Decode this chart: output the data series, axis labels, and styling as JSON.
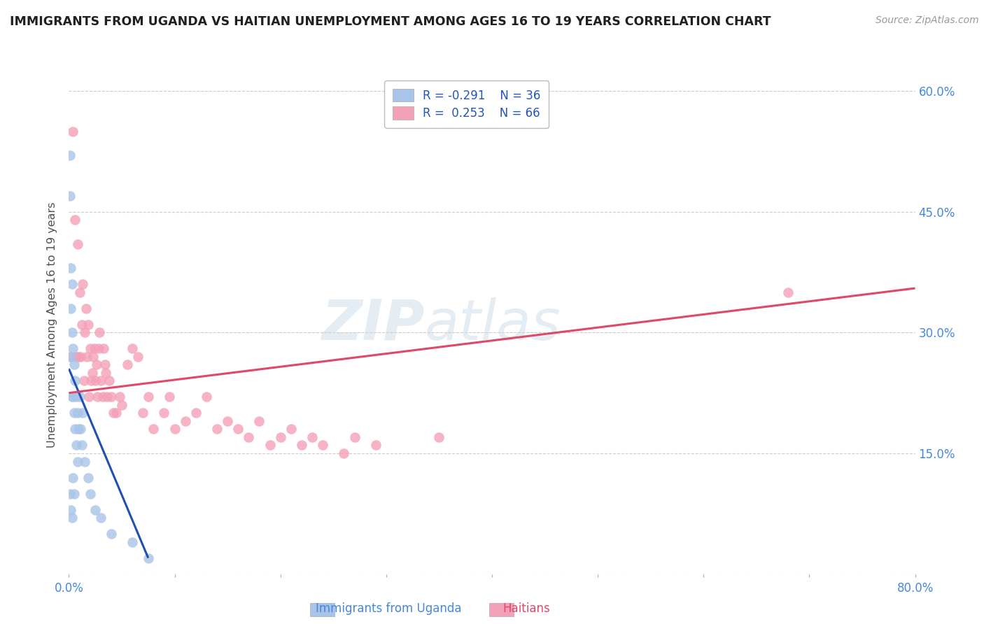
{
  "title": "IMMIGRANTS FROM UGANDA VS HAITIAN UNEMPLOYMENT AMONG AGES 16 TO 19 YEARS CORRELATION CHART",
  "source": "Source: ZipAtlas.com",
  "ylabel_left": "Unemployment Among Ages 16 to 19 years",
  "xlim": [
    0.0,
    0.8
  ],
  "ylim": [
    0.0,
    0.62
  ],
  "legend_r1": "R = -0.291",
  "legend_n1": "N = 36",
  "legend_r2": "R =  0.253",
  "legend_n2": "N = 66",
  "color_uganda": "#a8c4e8",
  "color_haiti": "#f4a0b8",
  "color_trend_uganda": "#2050b0",
  "color_trend_haiti": "#e04868",
  "color_axis_right": "#4488dd",
  "color_title": "#202020",
  "background_color": "#ffffff",
  "grid_color": "#cccccc",
  "marker_size": 110,
  "uganda_x": [
    0.001,
    0.001,
    0.001,
    0.002,
    0.002,
    0.002,
    0.002,
    0.003,
    0.003,
    0.003,
    0.003,
    0.004,
    0.004,
    0.004,
    0.005,
    0.005,
    0.005,
    0.006,
    0.006,
    0.007,
    0.007,
    0.008,
    0.008,
    0.009,
    0.01,
    0.011,
    0.012,
    0.013,
    0.015,
    0.018,
    0.02,
    0.025,
    0.03,
    0.04,
    0.06,
    0.075
  ],
  "uganda_y": [
    0.52,
    0.47,
    0.1,
    0.38,
    0.33,
    0.27,
    0.08,
    0.36,
    0.3,
    0.22,
    0.07,
    0.28,
    0.22,
    0.12,
    0.26,
    0.2,
    0.1,
    0.24,
    0.18,
    0.22,
    0.16,
    0.2,
    0.14,
    0.18,
    0.22,
    0.18,
    0.16,
    0.2,
    0.14,
    0.12,
    0.1,
    0.08,
    0.07,
    0.05,
    0.04,
    0.02
  ],
  "haiti_x": [
    0.002,
    0.004,
    0.006,
    0.007,
    0.008,
    0.009,
    0.01,
    0.011,
    0.012,
    0.013,
    0.014,
    0.015,
    0.016,
    0.017,
    0.018,
    0.019,
    0.02,
    0.021,
    0.022,
    0.023,
    0.024,
    0.025,
    0.026,
    0.027,
    0.028,
    0.029,
    0.03,
    0.032,
    0.033,
    0.034,
    0.035,
    0.036,
    0.038,
    0.04,
    0.042,
    0.045,
    0.048,
    0.05,
    0.055,
    0.06,
    0.065,
    0.07,
    0.075,
    0.08,
    0.09,
    0.095,
    0.1,
    0.11,
    0.12,
    0.13,
    0.14,
    0.15,
    0.16,
    0.17,
    0.18,
    0.19,
    0.2,
    0.21,
    0.22,
    0.23,
    0.24,
    0.26,
    0.27,
    0.29,
    0.35,
    0.68
  ],
  "haiti_y": [
    0.27,
    0.55,
    0.44,
    0.27,
    0.41,
    0.27,
    0.35,
    0.27,
    0.31,
    0.36,
    0.24,
    0.3,
    0.33,
    0.27,
    0.31,
    0.22,
    0.28,
    0.24,
    0.25,
    0.27,
    0.28,
    0.24,
    0.26,
    0.22,
    0.28,
    0.3,
    0.24,
    0.22,
    0.28,
    0.26,
    0.25,
    0.22,
    0.24,
    0.22,
    0.2,
    0.2,
    0.22,
    0.21,
    0.26,
    0.28,
    0.27,
    0.2,
    0.22,
    0.18,
    0.2,
    0.22,
    0.18,
    0.19,
    0.2,
    0.22,
    0.18,
    0.19,
    0.18,
    0.17,
    0.19,
    0.16,
    0.17,
    0.18,
    0.16,
    0.17,
    0.16,
    0.15,
    0.17,
    0.16,
    0.17,
    0.35
  ],
  "uganda_trend_x": [
    0.0,
    0.075
  ],
  "uganda_trend_y": [
    0.255,
    0.02
  ],
  "haiti_trend_x": [
    0.0,
    0.8
  ],
  "haiti_trend_y": [
    0.225,
    0.355
  ]
}
